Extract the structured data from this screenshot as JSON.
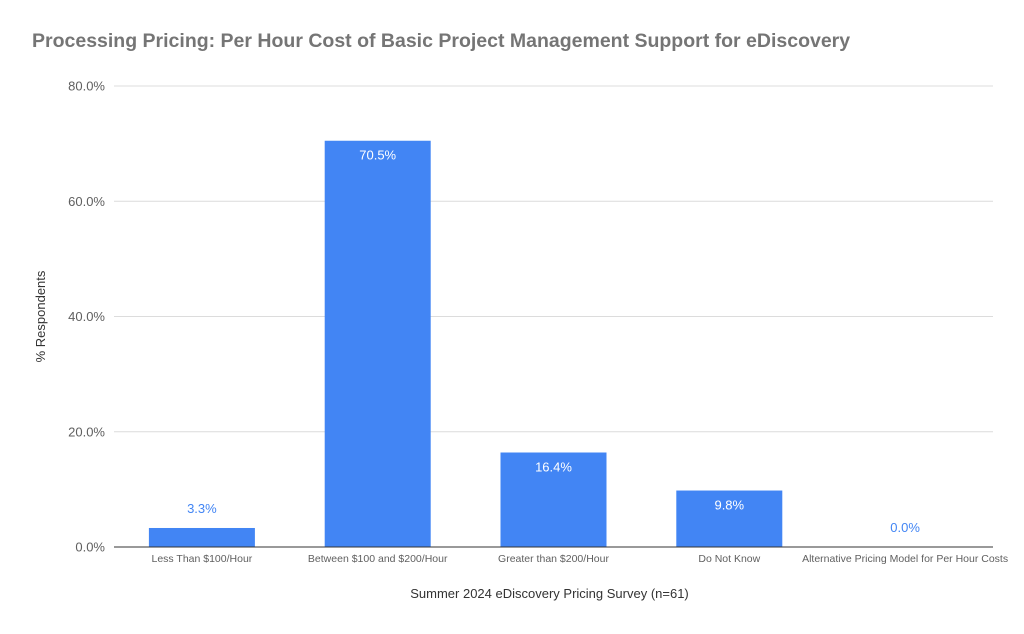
{
  "chart_data": {
    "type": "bar",
    "title": "Processing Pricing: Per Hour Cost of Basic Project Management Support for eDiscovery",
    "xlabel": "Summer 2024 eDiscovery Pricing Survey (n=61)",
    "ylabel": "% Respondents",
    "categories": [
      "Less Than $100/Hour",
      "Between $100 and $200/Hour",
      "Greater than $200/Hour",
      "Do Not Know",
      "Alternative Pricing Model for Per Hour Costs"
    ],
    "values": [
      3.3,
      70.5,
      16.4,
      9.8,
      0.0
    ],
    "data_labels": [
      "3.3%",
      "70.5%",
      "16.4%",
      "9.8%",
      "0.0%"
    ],
    "ylim": [
      0,
      80
    ],
    "yticks": [
      0,
      20,
      40,
      60,
      80
    ],
    "ytick_labels": [
      "0.0%",
      "20.0%",
      "40.0%",
      "60.0%",
      "80.0%"
    ],
    "grid": true,
    "legend": "none",
    "bar_color": "#4285f4",
    "label_inside_color": "#ffffff",
    "label_outside_color": "#4285f4"
  }
}
